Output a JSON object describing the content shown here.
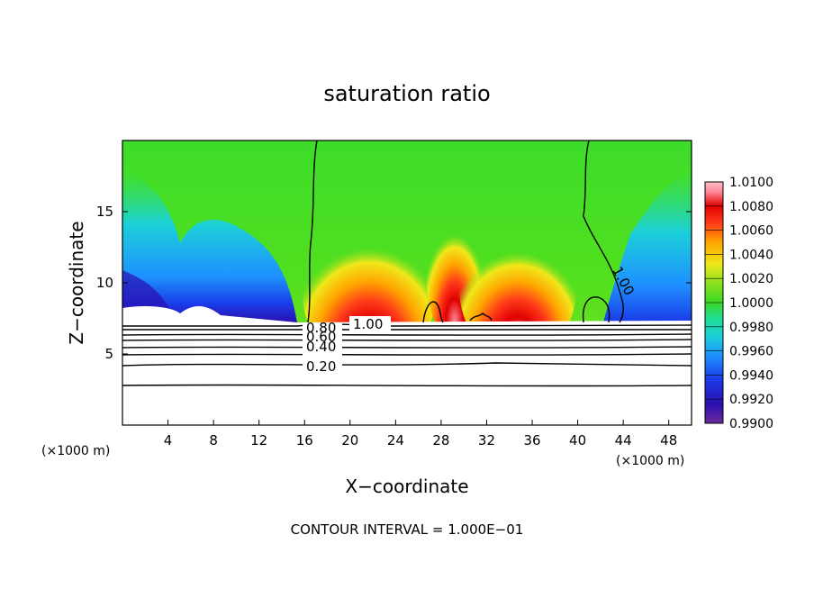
{
  "chart_data": {
    "type": "heatmap",
    "title": "saturation ratio",
    "xlabel": "X−coordinate",
    "ylabel": "Z−coordinate",
    "x_unit": "(×1000 m)",
    "xlim": [
      0,
      50
    ],
    "ylim": [
      0,
      20
    ],
    "x_ticks": [
      "4",
      "8",
      "12",
      "16",
      "20",
      "24",
      "28",
      "32",
      "36",
      "40",
      "44",
      "48"
    ],
    "y_ticks": [
      "5",
      "10",
      "15"
    ],
    "colorbar": {
      "range": [
        0.99,
        1.01
      ],
      "tick_labels": [
        "1.0100",
        "1.0080",
        "1.0060",
        "1.0040",
        "1.0020",
        "1.0000",
        "0.9980",
        "0.9960",
        "0.9940",
        "0.9920",
        "0.9900"
      ],
      "colors": [
        "#6a2a9a",
        "#2a0fb0",
        "#1a3ae8",
        "#1e90ff",
        "#1bd0d8",
        "#1edc9a",
        "#3bd826",
        "#8ae01e",
        "#f0e81a",
        "#ffa500",
        "#ff3a1a",
        "#e00000",
        "#ff8a9a",
        "#ffffff"
      ]
    },
    "contour_labels": [
      "1.00",
      "1.00",
      "0.80",
      "0.60",
      "0.40",
      "0.20"
    ],
    "caption": "CONTOUR INTERVAL = 1.000E−01"
  }
}
